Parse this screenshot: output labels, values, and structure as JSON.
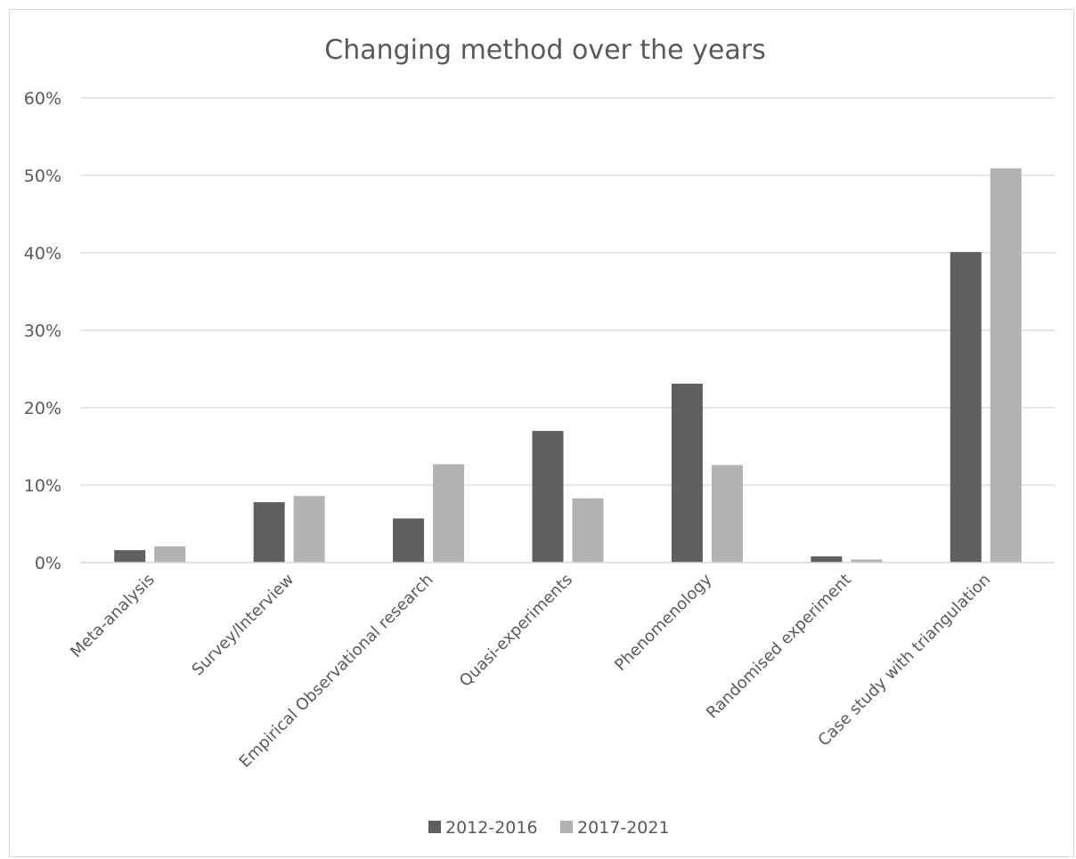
{
  "chart_data": {
    "type": "bar",
    "title": "Changing method over the years",
    "xlabel": "",
    "ylabel": "",
    "categories": [
      "Meta-analysis",
      "Survey/Interview",
      "Empirical Observational research",
      "Quasi-experiments",
      "Phenomenology",
      "Randomised experiment",
      "Case study with triangulation"
    ],
    "series": [
      {
        "name": "2012-2016",
        "color": "#5f5f5f",
        "values": [
          1.6,
          7.8,
          5.7,
          17.0,
          23.1,
          0.8,
          40.1
        ]
      },
      {
        "name": "2017-2021",
        "color": "#b2b2b2",
        "values": [
          2.1,
          8.6,
          12.7,
          8.3,
          12.6,
          0.4,
          50.9
        ]
      }
    ],
    "ylim": [
      0,
      60
    ],
    "yticks": [
      0,
      10,
      20,
      30,
      40,
      50,
      60
    ],
    "ytick_labels": [
      "0%",
      "10%",
      "20%",
      "30%",
      "40%",
      "50%",
      "60%"
    ],
    "grid": true,
    "legend_position": "bottom"
  }
}
